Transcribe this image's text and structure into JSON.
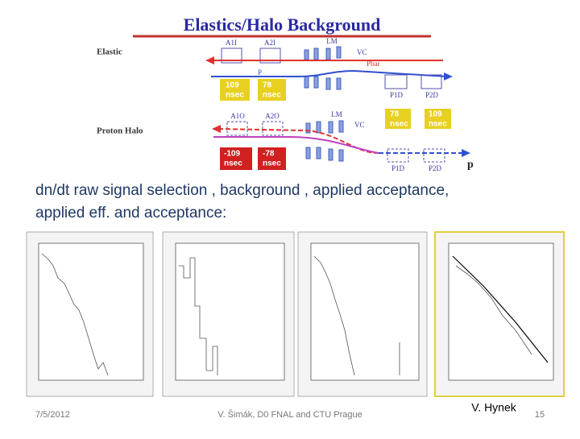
{
  "diagram": {
    "title": "Elastics/Halo Background",
    "elastic": {
      "label": "Elastic",
      "detectors": [
        "A1I",
        "A2I",
        "LM",
        "VC"
      ],
      "beams": [
        "Pbar",
        "P"
      ],
      "timings": [
        [
          "109",
          "nsec"
        ],
        [
          "78",
          "nsec"
        ]
      ],
      "far": [
        "P1D",
        "P2D"
      ]
    },
    "halo": {
      "label": "Proton Halo",
      "detectors": [
        "A1O",
        "A2O",
        "LM",
        "VC"
      ],
      "timings_far": [
        [
          "78",
          "nsec"
        ],
        [
          "109",
          "nsec"
        ]
      ],
      "timings_near": [
        [
          "-109",
          "nsec"
        ],
        [
          "-78",
          "nsec"
        ]
      ],
      "far": [
        "P1D",
        "P2D"
      ],
      "beam": "p"
    }
  },
  "body": {
    "text": [
      "dn/dt raw signal selection , background , applied acceptance,",
      "applied eff. and acceptance:"
    ]
  },
  "footer": {
    "date": "7/5/2012",
    "center": "V. Šimák, D0 FNAL and CTU Prague",
    "author": "V. Hynek",
    "page": "15"
  }
}
